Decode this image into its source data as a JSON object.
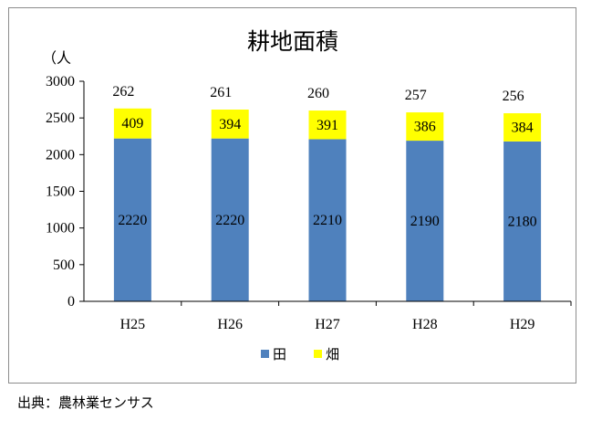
{
  "source_note": "出典：農林業センサス",
  "chart_data": {
    "type": "bar",
    "stacked": true,
    "title": "耕地面積",
    "unit_label": "（人",
    "xlabel": "",
    "ylabel": "",
    "ylim": [
      0,
      3000
    ],
    "yticks": [
      0,
      500,
      1000,
      1500,
      2000,
      2500,
      3000
    ],
    "categories": [
      "H25",
      "H26",
      "H27",
      "H28",
      "H29"
    ],
    "series": [
      {
        "name": "田",
        "color": "#4f81bd",
        "values": [
          2220,
          2220,
          2210,
          2190,
          2180
        ]
      },
      {
        "name": "畑",
        "color": "#ffff00",
        "values": [
          409,
          394,
          391,
          386,
          384
        ]
      }
    ],
    "above_bar_labels": [
      "262",
      "261",
      "260",
      "257",
      "256"
    ],
    "grid": false,
    "legend_position": "bottom"
  }
}
